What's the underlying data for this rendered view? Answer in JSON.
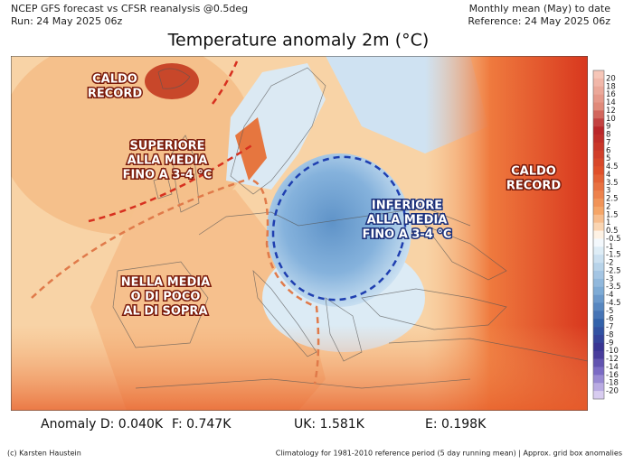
{
  "header": {
    "left_line1": "NCEP GFS forecast vs CFSR reanalysis @0.5deg",
    "left_line2": "Run: 24 May 2025 06z",
    "right_line1": "Monthly mean (May) to date",
    "right_line2": "Reference: 24 May 2025 06z"
  },
  "title": "Temperature anomaly 2m (°C)",
  "annotations": [
    {
      "lines": [
        "CALDO",
        "RECORD"
      ]
    },
    {
      "lines": [
        "SUPERIORE",
        "ALLA MEDIA",
        "FINO A 3-4 °C"
      ]
    },
    {
      "lines": [
        "NELLA MEDIA",
        "O DI POCO",
        "AL DI SOPRA"
      ]
    },
    {
      "lines": [
        "INFERIORE",
        "ALLA MEDIA",
        "FINO A 3-4 °C"
      ]
    },
    {
      "lines": [
        "CALDO",
        "RECORD"
      ]
    }
  ],
  "colorbar_labels": [
    "20",
    "18",
    "16",
    "14",
    "12",
    "10",
    "9",
    "8",
    "7",
    "6",
    "5",
    "4.5",
    "4",
    "3.5",
    "3",
    "2.5",
    "2",
    "1.5",
    "1",
    "0.5",
    "-0.5",
    "-1",
    "-1.5",
    "-2",
    "-2.5",
    "-3",
    "-3.5",
    "-4",
    "-4.5",
    "-5",
    "-6",
    "-7",
    "-8",
    "-9",
    "-10",
    "-12",
    "-14",
    "-16",
    "-18",
    "-20"
  ],
  "stats": [
    "Anomaly D: 0.040K",
    "F: 0.747K",
    "UK: 1.581K",
    "E: 0.198K"
  ],
  "footer": {
    "left": "(c) Karsten Haustein",
    "right": "Climatology for 1981-2010 reference period (5 day running mean) | Approx. grid box anomalies"
  }
}
